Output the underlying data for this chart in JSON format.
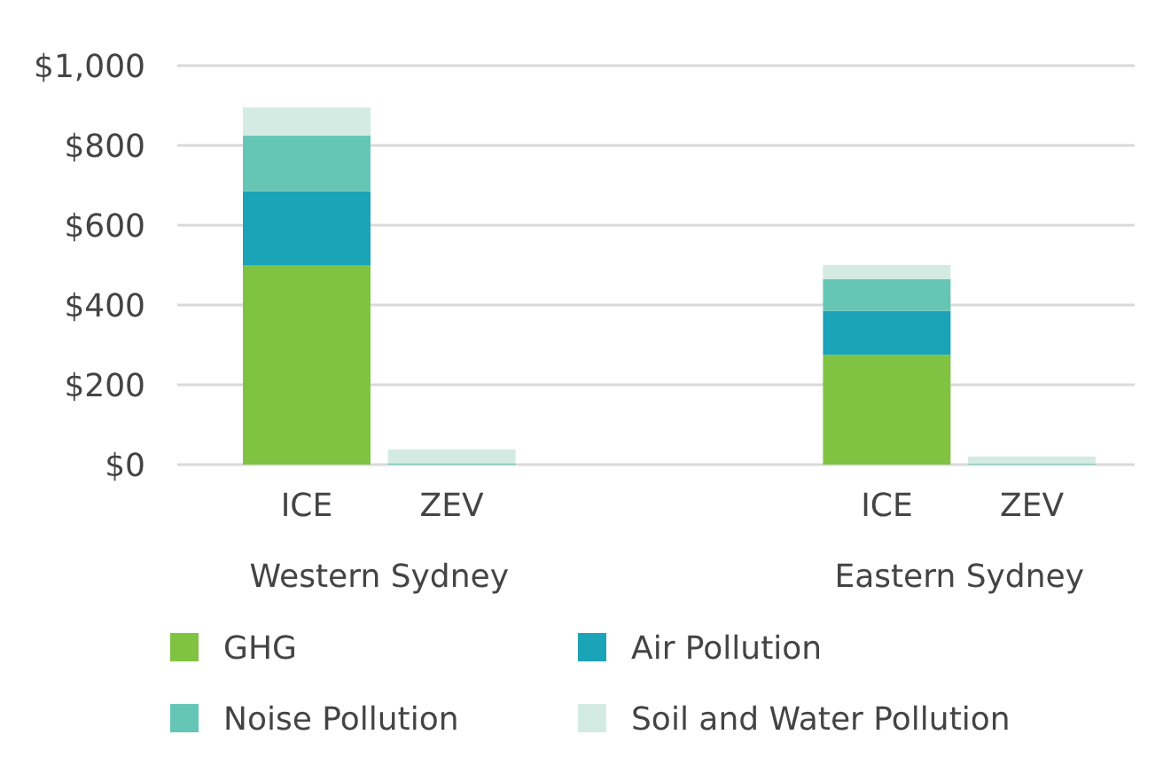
{
  "chart_data": {
    "type": "bar",
    "stacked": true,
    "categories": [
      "ICE",
      "ZEV",
      null,
      null,
      "ICE",
      "ZEV"
    ],
    "series": [
      {
        "name": "GHG",
        "color": "#80c342",
        "values": [
          500,
          0,
          null,
          null,
          275,
          0
        ]
      },
      {
        "name": "Air Pollution",
        "color": "#1ba3b8",
        "values": [
          185,
          0,
          null,
          null,
          110,
          0
        ]
      },
      {
        "name": "Noise Pollution",
        "color": "#66c6b5",
        "values": [
          140,
          3,
          null,
          null,
          80,
          2
        ]
      },
      {
        "name": "Soil and Water Pollution",
        "color": "#d3ebe3",
        "values": [
          70,
          35,
          null,
          null,
          35,
          18
        ]
      }
    ],
    "ylim": [
      0,
      1000
    ],
    "yticks": [
      {
        "value": 0,
        "label": "$0"
      },
      {
        "value": 200,
        "label": "$200"
      },
      {
        "value": 400,
        "label": "$400"
      },
      {
        "value": 600,
        "label": "$600"
      },
      {
        "value": 800,
        "label": "$800"
      },
      {
        "value": 1000,
        "label": "$1,000"
      }
    ],
    "grid": "y",
    "legend": "bottom",
    "annotations": [
      "Western Sydney",
      "Eastern Sydney"
    ]
  }
}
